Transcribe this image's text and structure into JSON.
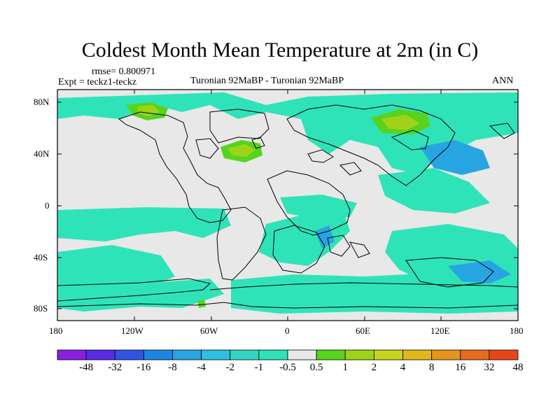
{
  "title": "Coldest Month Mean Temperature at 2m (in C)",
  "rmse_text": "rmse= 0.800971",
  "expt_text": "Expt = teckz1-teckz",
  "subtitle": "Turonian  92MaBP - Turonian  92MaBP",
  "period": "ANN",
  "lat_ticks": [
    "80N",
    "40N",
    "0",
    "40S",
    "80S"
  ],
  "lon_ticks": [
    "180",
    "120W",
    "60W",
    "0",
    "60E",
    "120E",
    "180"
  ],
  "colorbar": {
    "colors": [
      "#8a1fe0",
      "#5a2be6",
      "#2f55e0",
      "#1e86e0",
      "#27a5e2",
      "#2fc0e0",
      "#35d4c4",
      "#2fe3b8",
      "#e8e8e8",
      "#57d31e",
      "#9ed31a",
      "#c8d41c",
      "#e0b81c",
      "#e4951c",
      "#e46c1c",
      "#e84618"
    ],
    "labels": [
      "-48",
      "-32",
      "-16",
      "-8",
      "-4",
      "-2",
      "-1",
      "-0.5",
      "0.5",
      "1",
      "2",
      "4",
      "8",
      "16",
      "32",
      "48"
    ]
  },
  "colors": {
    "land_gray": "#e8e8e8",
    "cyan": "#2fe3b8",
    "light_cyan": "#35d4c4",
    "blue": "#27a5e2",
    "green": "#57d31e",
    "yellow_green": "#9ed31a",
    "coast": "#000000"
  }
}
